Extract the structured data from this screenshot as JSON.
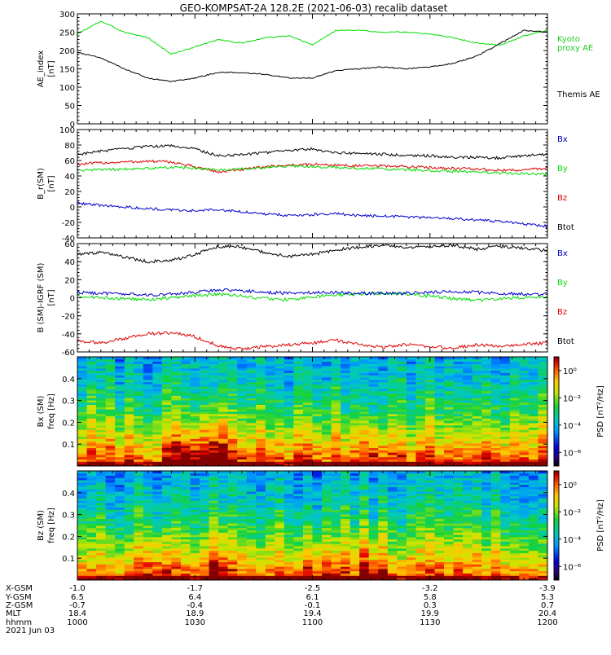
{
  "title": "GEO-KOMPSAT-2A 128.2E (2021-06-03) recalib dataset",
  "colors": {
    "black": "#000000",
    "green": "#00dd00",
    "red": "#dd0000",
    "blue": "#0000cc",
    "kyoto": "#22cc22"
  },
  "chart_data": [
    {
      "type": "line",
      "id": "ae",
      "ylabel": [
        "AE_index",
        "[nT]"
      ],
      "ylim": [
        0,
        300
      ],
      "yticks": [
        0,
        50,
        100,
        150,
        200,
        250,
        300
      ],
      "x": [
        10.0,
        10.1,
        10.2,
        10.3,
        10.4,
        10.5,
        10.6,
        10.7,
        10.8,
        10.9,
        11.0,
        11.1,
        11.2,
        11.3,
        11.4,
        11.5,
        11.6,
        11.7,
        11.8,
        11.9,
        12.0
      ],
      "series": [
        {
          "name": "Kyoto proxy AE",
          "color_key": "green",
          "values": [
            245,
            280,
            250,
            235,
            190,
            210,
            230,
            220,
            235,
            240,
            215,
            255,
            255,
            250,
            250,
            245,
            235,
            220,
            215,
            240,
            255
          ]
        },
        {
          "name": "Themis AE",
          "color_key": "black",
          "values": [
            195,
            180,
            150,
            125,
            115,
            125,
            140,
            140,
            135,
            125,
            125,
            145,
            150,
            155,
            150,
            155,
            165,
            185,
            220,
            255,
            250
          ]
        }
      ],
      "legend_lines": [
        {
          "text": "Kyoto",
          "color_key": "kyoto"
        },
        {
          "text": "proxy AE",
          "color_key": "kyoto"
        },
        {
          "text": "Themis AE",
          "color_key": "black"
        }
      ]
    },
    {
      "type": "line",
      "id": "bsm",
      "ylabel": [
        "B_r(SM)",
        "[nT]"
      ],
      "ylim": [
        -40,
        100
      ],
      "yticks": [
        -40,
        -20,
        0,
        20,
        40,
        60,
        80,
        100
      ],
      "x": [
        10.0,
        10.1,
        10.2,
        10.3,
        10.4,
        10.5,
        10.6,
        10.7,
        10.8,
        10.9,
        11.0,
        11.1,
        11.2,
        11.3,
        11.4,
        11.5,
        11.6,
        11.7,
        11.8,
        11.9,
        12.0
      ],
      "series": [
        {
          "name": "Btot",
          "color_key": "black",
          "values": [
            68,
            72,
            75,
            78,
            79,
            75,
            66,
            68,
            70,
            73,
            75,
            70,
            69,
            68,
            67,
            66,
            64,
            64,
            63,
            66,
            68
          ]
        },
        {
          "name": "Bz",
          "color_key": "red",
          "values": [
            55,
            57,
            58,
            59,
            58,
            52,
            45,
            48,
            52,
            54,
            55,
            54,
            53,
            53,
            52,
            51,
            50,
            49,
            47,
            48,
            50
          ]
        },
        {
          "name": "By",
          "color_key": "green",
          "values": [
            47,
            48,
            49,
            50,
            51,
            50,
            48,
            49,
            51,
            53,
            52,
            51,
            50,
            49,
            48,
            47,
            46,
            45,
            44,
            43,
            42
          ]
        },
        {
          "name": "Bx",
          "color_key": "blue",
          "values": [
            5,
            2,
            0,
            -2,
            -4,
            -5,
            -3,
            -6,
            -9,
            -11,
            -10,
            -9,
            -11,
            -12,
            -13,
            -14,
            -15,
            -17,
            -19,
            -22,
            -25
          ]
        }
      ],
      "legend_lines": [
        {
          "text": "Bx",
          "color_key": "blue"
        },
        {
          "text": "By",
          "color_key": "green"
        },
        {
          "text": "Bz",
          "color_key": "red"
        },
        {
          "text": "Btot",
          "color_key": "black"
        }
      ]
    },
    {
      "type": "line",
      "id": "bdiff",
      "ylabel": [
        "B (SM)-IGRF (SM)",
        "[nT]"
      ],
      "ylim": [
        -60,
        60
      ],
      "yticks": [
        -60,
        -40,
        -20,
        0,
        20,
        40,
        60
      ],
      "x": [
        10.0,
        10.1,
        10.2,
        10.3,
        10.4,
        10.5,
        10.6,
        10.7,
        10.8,
        10.9,
        11.0,
        11.1,
        11.2,
        11.3,
        11.4,
        11.5,
        11.6,
        11.7,
        11.8,
        11.9,
        12.0
      ],
      "series": [
        {
          "name": "Btot",
          "color_key": "black",
          "values": [
            48,
            50,
            45,
            40,
            41,
            48,
            57,
            56,
            50,
            46,
            48,
            53,
            56,
            58,
            55,
            57,
            58,
            54,
            57,
            55,
            52
          ]
        },
        {
          "name": "By",
          "color_key": "green",
          "values": [
            2,
            0,
            -1,
            -2,
            0,
            2,
            4,
            2,
            -1,
            -2,
            1,
            3,
            4,
            5,
            4,
            2,
            -1,
            -3,
            -1,
            0,
            1
          ]
        },
        {
          "name": "Bx",
          "color_key": "blue",
          "values": [
            6,
            5,
            4,
            3,
            4,
            6,
            9,
            8,
            6,
            5,
            6,
            6,
            5,
            5,
            5,
            6,
            7,
            6,
            5,
            4,
            4
          ]
        },
        {
          "name": "Bz",
          "color_key": "red",
          "values": [
            -48,
            -50,
            -45,
            -40,
            -39,
            -43,
            -53,
            -57,
            -54,
            -52,
            -50,
            -47,
            -52,
            -55,
            -52,
            -54,
            -56,
            -52,
            -54,
            -52,
            -50
          ]
        }
      ],
      "legend_lines": [
        {
          "text": "Bx",
          "color_key": "blue"
        },
        {
          "text": "By",
          "color_key": "green"
        },
        {
          "text": "Bz",
          "color_key": "red"
        },
        {
          "text": "Btot",
          "color_key": "black"
        }
      ]
    },
    {
      "type": "heatmap",
      "id": "specx",
      "ylabel": [
        "Bx (SM)",
        "freq [Hz]"
      ],
      "ylim": [
        0,
        0.5
      ],
      "yticks": [
        0.1,
        0.2,
        0.3,
        0.4
      ],
      "colorbar_label": "PSD [nT²/Hz]",
      "colorbar_ticks": [
        "10⁰",
        "10⁻²",
        "10⁻⁴",
        "10⁻⁶"
      ],
      "colorbar_ticks_log": [
        0,
        -2,
        -4,
        -6
      ],
      "colorbar_range_log": [
        -7,
        1
      ],
      "columns": 50,
      "rows": 48,
      "seed": 7,
      "band_value_log": [
        0.5,
        -1.2,
        -2.6,
        -3.5,
        -4.0
      ],
      "enhancement_times": [
        10.45,
        10.55,
        10.62,
        11.25
      ]
    },
    {
      "type": "heatmap",
      "id": "specz",
      "ylabel": [
        "Bz (SM)",
        "freq [Hz]"
      ],
      "ylim": [
        0,
        0.5
      ],
      "yticks": [
        0.1,
        0.2,
        0.3,
        0.4
      ],
      "colorbar_label": "PSD [nT²/Hz]",
      "colorbar_ticks": [
        "10⁰",
        "10⁻²",
        "10⁻⁴",
        "10⁻⁶"
      ],
      "colorbar_ticks_log": [
        0,
        -2,
        -4,
        -6
      ],
      "colorbar_range_log": [
        -7,
        1
      ],
      "columns": 50,
      "rows": 48,
      "seed": 13,
      "band_value_log": [
        0.3,
        -1.4,
        -2.7,
        -3.6,
        -4.1
      ],
      "enhancement_times": [
        10.35,
        10.6,
        11.0,
        11.25
      ]
    }
  ],
  "xaxis": {
    "ticks": [
      10.0,
      10.5,
      11.0,
      11.5,
      12.0
    ],
    "rows": [
      {
        "label": "X-GSM",
        "values": [
          "-1.0",
          "-1.7",
          "-2.5",
          "-3.2",
          "-3.9"
        ]
      },
      {
        "label": "Y-GSM",
        "values": [
          "6.5",
          "6.4",
          "6.1",
          "5.8",
          "5.3"
        ]
      },
      {
        "label": "Z-GSM",
        "values": [
          "-0.7",
          "-0.4",
          "-0.1",
          "0.3",
          "0.7"
        ]
      },
      {
        "label": "MLT",
        "values": [
          "18.4",
          "18.9",
          "19.4",
          "19.9",
          "20.4"
        ]
      },
      {
        "label": "hhmm",
        "values": [
          "1000",
          "1030",
          "1100",
          "1130",
          "1200"
        ]
      }
    ],
    "date": "2021 Jun 03"
  }
}
